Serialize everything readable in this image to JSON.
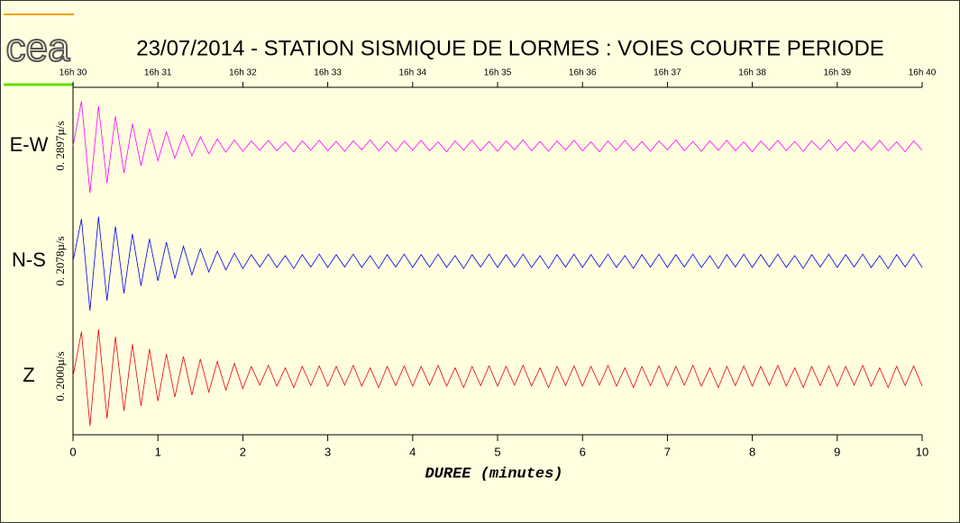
{
  "chart_data": {
    "type": "seismogram",
    "logo": "cea",
    "title": "23/07/2014  -  STATION SISMIQUE DE LORMES : VOIES COURTE PERIODE",
    "xlabel": "DUREE (minutes)",
    "xlim": [
      0,
      10
    ],
    "xticks": [
      0,
      1,
      2,
      3,
      4,
      5,
      6,
      7,
      8,
      9,
      10
    ],
    "top_labels": [
      "16h 30",
      "16h 31",
      "16h 32",
      "16h 33",
      "16h 34",
      "16h 35",
      "16h 36",
      "16h 37",
      "16h 38",
      "16h 39",
      "16h 40"
    ],
    "ylim": [
      -1,
      1
    ],
    "x": [
      0,
      0.1,
      0.2,
      0.3,
      0.4,
      0.5,
      0.6,
      0.7,
      0.8,
      0.9,
      1,
      1.1,
      1.2,
      1.3,
      1.4,
      1.5,
      1.6,
      1.7,
      1.8,
      1.9,
      2,
      2.1,
      2.2,
      2.3,
      2.4,
      2.5,
      2.6,
      2.7,
      2.8,
      2.9,
      3,
      3.1,
      3.2,
      3.3,
      3.4,
      3.5,
      3.6,
      3.7,
      3.8,
      3.9,
      4,
      4.1,
      4.2,
      4.3,
      4.4,
      4.5,
      4.6,
      4.7,
      4.8,
      4.9,
      5,
      5.1,
      5.2,
      5.3,
      5.4,
      5.5,
      5.6,
      5.7,
      5.8,
      5.9,
      6,
      6.1,
      6.2,
      6.3,
      6.4,
      6.5,
      6.6,
      6.7,
      6.8,
      6.9,
      7,
      7.1,
      7.2,
      7.3,
      7.4,
      7.5,
      7.6,
      7.7,
      7.8,
      7.9,
      8,
      8.1,
      8.2,
      8.3,
      8.4,
      8.5,
      8.6,
      8.7,
      8.8,
      8.9,
      9,
      9.1,
      9.2,
      9.3,
      9.4,
      9.5,
      9.6,
      9.7,
      9.8,
      9.9,
      10
    ],
    "series": [
      {
        "name": "E-W",
        "scale": "0. 2897µ/s",
        "color": "#ff00ff",
        "values": [
          0,
          0.9,
          -0.95,
          0.8,
          -0.75,
          0.6,
          -0.55,
          0.45,
          -0.4,
          0.35,
          -0.3,
          0.28,
          -0.25,
          0.22,
          -0.2,
          0.18,
          -0.16,
          0.14,
          -0.13,
          0.12,
          -0.11,
          0.1,
          -0.09,
          0.11,
          -0.1,
          0.08,
          -0.12,
          0.1,
          -0.09,
          0.11,
          -0.1,
          0.09,
          -0.11,
          0.1,
          -0.08,
          0.12,
          -0.1,
          0.09,
          -0.11,
          0.1,
          -0.09,
          0.11,
          -0.1,
          0.08,
          -0.12,
          0.1,
          -0.09,
          0.11,
          -0.1,
          0.09,
          -0.11,
          0.1,
          -0.08,
          0.12,
          -0.1,
          0.09,
          -0.11,
          0.1,
          -0.09,
          0.11,
          -0.1,
          0.08,
          -0.12,
          0.1,
          -0.09,
          0.11,
          -0.1,
          0.09,
          -0.11,
          0.1,
          -0.08,
          0.12,
          -0.1,
          0.09,
          -0.11,
          0.1,
          -0.09,
          0.11,
          -0.1,
          0.08,
          -0.12,
          0.1,
          -0.09,
          0.11,
          -0.1,
          0.09,
          -0.11,
          0.1,
          -0.08,
          0.12,
          -0.1,
          0.09,
          -0.11,
          0.1,
          -0.09,
          0.11,
          -0.1,
          0.08,
          -0.12,
          0.1,
          -0.09
        ]
      },
      {
        "name": "N-S",
        "scale": "0. 2078µ/s",
        "color": "#0000ee",
        "values": [
          0,
          0.85,
          -1,
          0.9,
          -0.8,
          0.7,
          -0.65,
          0.55,
          -0.5,
          0.45,
          -0.4,
          0.38,
          -0.35,
          0.3,
          -0.28,
          0.25,
          -0.22,
          0.2,
          -0.18,
          0.16,
          -0.15,
          0.13,
          -0.12,
          0.14,
          -0.13,
          0.11,
          -0.15,
          0.13,
          -0.12,
          0.14,
          -0.13,
          0.13,
          -0.12,
          0.14,
          -0.13,
          0.11,
          -0.15,
          0.13,
          -0.12,
          0.14,
          -0.13,
          0.13,
          -0.12,
          0.14,
          -0.13,
          0.11,
          -0.15,
          0.13,
          -0.12,
          0.14,
          -0.13,
          0.13,
          -0.12,
          0.14,
          -0.13,
          0.11,
          -0.15,
          0.13,
          -0.12,
          0.14,
          -0.13,
          0.13,
          -0.12,
          0.14,
          -0.13,
          0.11,
          -0.15,
          0.13,
          -0.12,
          0.14,
          -0.13,
          0.13,
          -0.12,
          0.14,
          -0.13,
          0.11,
          -0.15,
          0.13,
          -0.12,
          0.14,
          -0.13,
          0.13,
          -0.12,
          0.14,
          -0.13,
          0.11,
          -0.15,
          0.13,
          -0.12,
          0.14,
          -0.13,
          0.13,
          -0.12,
          0.14,
          -0.13,
          0.11,
          -0.15,
          0.13,
          -0.12,
          0.14,
          -0.13
        ]
      },
      {
        "name": "Z",
        "scale": "0. 2000µ/s",
        "color": "#ee0000",
        "values": [
          0,
          0.9,
          -1,
          0.95,
          -0.85,
          0.8,
          -0.7,
          0.65,
          -0.6,
          0.55,
          -0.5,
          0.45,
          -0.42,
          0.4,
          -0.38,
          0.35,
          -0.32,
          0.3,
          -0.28,
          0.26,
          -0.25,
          0.2,
          -0.18,
          0.22,
          -0.2,
          0.17,
          -0.23,
          0.2,
          -0.19,
          0.21,
          -0.2,
          0.2,
          -0.18,
          0.22,
          -0.2,
          0.17,
          -0.23,
          0.2,
          -0.19,
          0.21,
          -0.2,
          0.2,
          -0.18,
          0.22,
          -0.2,
          0.17,
          -0.23,
          0.2,
          -0.19,
          0.21,
          -0.2,
          0.2,
          -0.18,
          0.22,
          -0.2,
          0.17,
          -0.23,
          0.2,
          -0.19,
          0.21,
          -0.2,
          0.2,
          -0.18,
          0.22,
          -0.2,
          0.17,
          -0.23,
          0.2,
          -0.19,
          0.21,
          -0.2,
          0.2,
          -0.18,
          0.22,
          -0.2,
          0.17,
          -0.23,
          0.2,
          -0.19,
          0.21,
          -0.2,
          0.2,
          -0.18,
          0.22,
          -0.2,
          0.17,
          -0.23,
          0.2,
          -0.19,
          0.21,
          -0.2,
          0.2,
          -0.18,
          0.22,
          -0.2,
          0.17,
          -0.23,
          0.2,
          -0.19,
          0.21,
          -0.2
        ]
      }
    ]
  }
}
